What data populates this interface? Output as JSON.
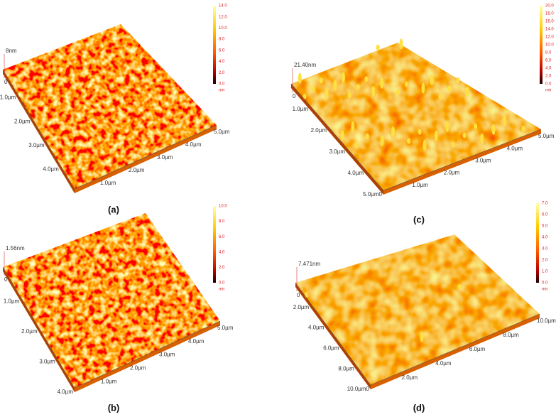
{
  "panels": [
    {
      "label": "(a)",
      "height_label": "8nm",
      "origin": "0",
      "colorbar": {
        "ticks": [
          "14.0",
          "12.0",
          "10.0",
          "8.0",
          "6.0",
          "4.0",
          "2.0",
          "0.0"
        ],
        "unit": "nm"
      },
      "left_axis": [
        "1.0µm",
        "2.0µm",
        "3.0µm",
        "4.0µm"
      ],
      "right_axis": [
        "1.0µm",
        "2.0µm",
        "3.0µm",
        "4.0µm",
        "5.0µm"
      ]
    },
    {
      "label": "(b)",
      "height_label": "1.56nm",
      "origin": "0",
      "colorbar": {
        "ticks": [
          "10.0",
          "8.0",
          "6.0",
          "4.0",
          "2.0",
          "0.0"
        ],
        "unit": "nm"
      },
      "left_axis": [
        "1.0µm",
        "2.0µm",
        "3.0µm",
        "4.0µm"
      ],
      "right_axis": [
        "1.0µm",
        "2.0µm",
        "3.0µm",
        "4.0µm",
        "5.0µm"
      ]
    },
    {
      "label": "(c)",
      "height_label": "21.40nm",
      "origin": "0",
      "colorbar": {
        "ticks": [
          "20.0",
          "18.0",
          "16.0",
          "14.0",
          "12.0",
          "10.0",
          "8.0",
          "6.0",
          "4.0",
          "2.0",
          "0.0"
        ],
        "unit": "nm"
      },
      "left_axis": [
        "1.0µm",
        "2.0µm",
        "3.0µm",
        "4.0µm",
        "5.0µm0"
      ],
      "right_axis": [
        "1.0µm",
        "2.0µm",
        "3.0µm",
        "4.0µm",
        "5.0µm"
      ]
    },
    {
      "label": "(d)",
      "height_label": "7.471nm",
      "origin": "0",
      "colorbar": {
        "ticks": [
          "7.0",
          "6.0",
          "5.0",
          "4.0",
          "3.0",
          "2.0",
          "1.0",
          "0.0"
        ],
        "unit": "nm"
      },
      "left_axis": [
        "2.0µm",
        "4.0µm",
        "6.0µm",
        "8.0µm",
        "10.0µm0"
      ],
      "right_axis": [
        "2.0µm",
        "4.0µm",
        "6.0µm",
        "8.0µm",
        "10.0µm"
      ]
    }
  ]
}
